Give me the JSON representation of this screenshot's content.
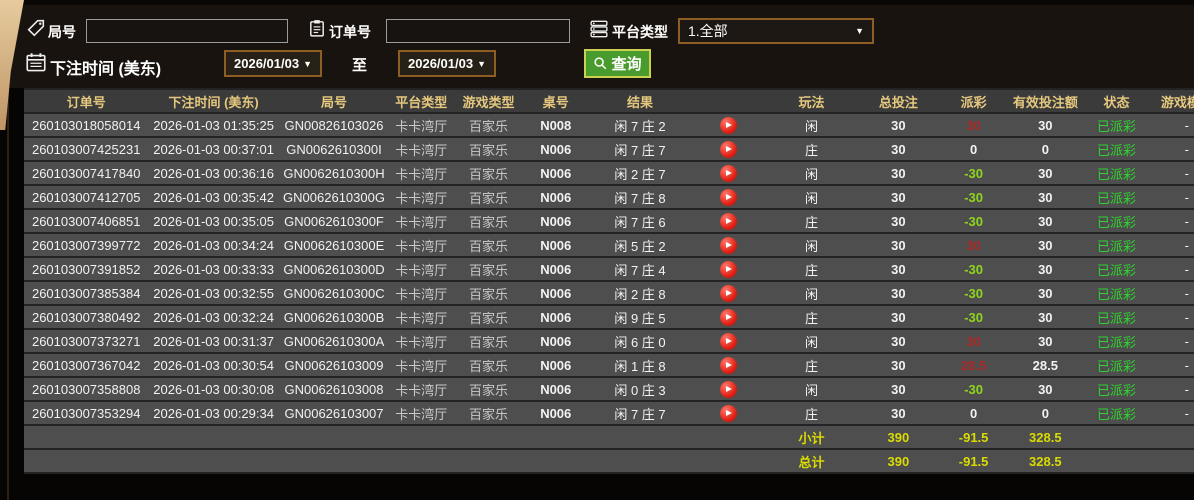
{
  "filters": {
    "round": {
      "label": "局号",
      "value": "",
      "icon": "tag-icon"
    },
    "order": {
      "label": "订单号",
      "value": "",
      "icon": "clipboard-icon"
    },
    "platform": {
      "label": "平台类型",
      "value": "1.全部",
      "icon": "server-icon"
    },
    "bet_time": {
      "label": "下注时间 (美东)",
      "icon": "calendar-icon"
    },
    "date_from": "2026/01/03",
    "to_label": "至",
    "date_to": "2026/01/03",
    "query": {
      "label": "查询",
      "icon": "search-icon"
    }
  },
  "table": {
    "headers": {
      "order": "订单号",
      "time": "下注时间 (美东)",
      "round": "局号",
      "platform": "平台类型",
      "game": "游戏类型",
      "table_no": "桌号",
      "result": "结果",
      "replay": "",
      "play": "玩法",
      "total_bet": "总投注",
      "payout": "派彩",
      "valid_bet": "有效投注额",
      "status": "状态",
      "mode": "游戏模式"
    },
    "rows": [
      {
        "order": "260103018058014",
        "time": "2026-01-03 01:35:25",
        "round": "GN00826103026",
        "platform": "卡卡湾厅",
        "game": "百家乐",
        "table_no": "N008",
        "result": "闲 7 庄 2",
        "play": "闲",
        "total": "30",
        "payout": "30",
        "valid": "30",
        "status": "已派彩",
        "mode": "-"
      },
      {
        "order": "260103007425231",
        "time": "2026-01-03 00:37:01",
        "round": "GN0062610300I",
        "platform": "卡卡湾厅",
        "game": "百家乐",
        "table_no": "N006",
        "result": "闲 7 庄 7",
        "play": "庄",
        "total": "30",
        "payout": "0",
        "valid": "0",
        "status": "已派彩",
        "mode": "-"
      },
      {
        "order": "260103007417840",
        "time": "2026-01-03 00:36:16",
        "round": "GN0062610300H",
        "platform": "卡卡湾厅",
        "game": "百家乐",
        "table_no": "N006",
        "result": "闲 2 庄 7",
        "play": "闲",
        "total": "30",
        "payout": "-30",
        "valid": "30",
        "status": "已派彩",
        "mode": "-"
      },
      {
        "order": "260103007412705",
        "time": "2026-01-03 00:35:42",
        "round": "GN0062610300G",
        "platform": "卡卡湾厅",
        "game": "百家乐",
        "table_no": "N006",
        "result": "闲 7 庄 8",
        "play": "闲",
        "total": "30",
        "payout": "-30",
        "valid": "30",
        "status": "已派彩",
        "mode": "-"
      },
      {
        "order": "260103007406851",
        "time": "2026-01-03 00:35:05",
        "round": "GN0062610300F",
        "platform": "卡卡湾厅",
        "game": "百家乐",
        "table_no": "N006",
        "result": "闲 7 庄 6",
        "play": "庄",
        "total": "30",
        "payout": "-30",
        "valid": "30",
        "status": "已派彩",
        "mode": "-"
      },
      {
        "order": "260103007399772",
        "time": "2026-01-03 00:34:24",
        "round": "GN0062610300E",
        "platform": "卡卡湾厅",
        "game": "百家乐",
        "table_no": "N006",
        "result": "闲 5 庄 2",
        "play": "闲",
        "total": "30",
        "payout": "30",
        "valid": "30",
        "status": "已派彩",
        "mode": "-"
      },
      {
        "order": "260103007391852",
        "time": "2026-01-03 00:33:33",
        "round": "GN0062610300D",
        "platform": "卡卡湾厅",
        "game": "百家乐",
        "table_no": "N006",
        "result": "闲 7 庄 4",
        "play": "庄",
        "total": "30",
        "payout": "-30",
        "valid": "30",
        "status": "已派彩",
        "mode": "-"
      },
      {
        "order": "260103007385384",
        "time": "2026-01-03 00:32:55",
        "round": "GN0062610300C",
        "platform": "卡卡湾厅",
        "game": "百家乐",
        "table_no": "N006",
        "result": "闲 2 庄 8",
        "play": "闲",
        "total": "30",
        "payout": "-30",
        "valid": "30",
        "status": "已派彩",
        "mode": "-"
      },
      {
        "order": "260103007380492",
        "time": "2026-01-03 00:32:24",
        "round": "GN0062610300B",
        "platform": "卡卡湾厅",
        "game": "百家乐",
        "table_no": "N006",
        "result": "闲 9 庄 5",
        "play": "庄",
        "total": "30",
        "payout": "-30",
        "valid": "30",
        "status": "已派彩",
        "mode": "-"
      },
      {
        "order": "260103007373271",
        "time": "2026-01-03 00:31:37",
        "round": "GN0062610300A",
        "platform": "卡卡湾厅",
        "game": "百家乐",
        "table_no": "N006",
        "result": "闲 6 庄 0",
        "play": "闲",
        "total": "30",
        "payout": "30",
        "valid": "30",
        "status": "已派彩",
        "mode": "-"
      },
      {
        "order": "260103007367042",
        "time": "2026-01-03 00:30:54",
        "round": "GN00626103009",
        "platform": "卡卡湾厅",
        "game": "百家乐",
        "table_no": "N006",
        "result": "闲 1 庄 8",
        "play": "庄",
        "total": "30",
        "payout": "28.5",
        "valid": "28.5",
        "status": "已派彩",
        "mode": "-"
      },
      {
        "order": "260103007358808",
        "time": "2026-01-03 00:30:08",
        "round": "GN00626103008",
        "platform": "卡卡湾厅",
        "game": "百家乐",
        "table_no": "N006",
        "result": "闲 0 庄 3",
        "play": "闲",
        "total": "30",
        "payout": "-30",
        "valid": "30",
        "status": "已派彩",
        "mode": "-"
      },
      {
        "order": "260103007353294",
        "time": "2026-01-03 00:29:34",
        "round": "GN00626103007",
        "platform": "卡卡湾厅",
        "game": "百家乐",
        "table_no": "N006",
        "result": "闲 7 庄 7",
        "play": "庄",
        "total": "30",
        "payout": "0",
        "valid": "0",
        "status": "已派彩",
        "mode": "-"
      }
    ],
    "subtotal": {
      "label": "小计",
      "total": "390",
      "payout": "-91.5",
      "valid": "328.5"
    },
    "total": {
      "label": "总计",
      "total": "390",
      "payout": "-91.5",
      "valid": "328.5"
    }
  },
  "icons": {
    "replay": "play-video-icon"
  },
  "colors": {
    "header_text": "#e5c87e",
    "win_red": "#a82a2a",
    "loss_green": "#8ed51d",
    "status_green": "#2fd32f",
    "footer_yellow": "#dadc00",
    "button_green": "#4a9b2d",
    "button_border": "#cbd151",
    "box_border": "#8d5e23",
    "row_bg": "#4e4e4e",
    "header_bg": "#3b3b3b",
    "separator": "#232323"
  }
}
